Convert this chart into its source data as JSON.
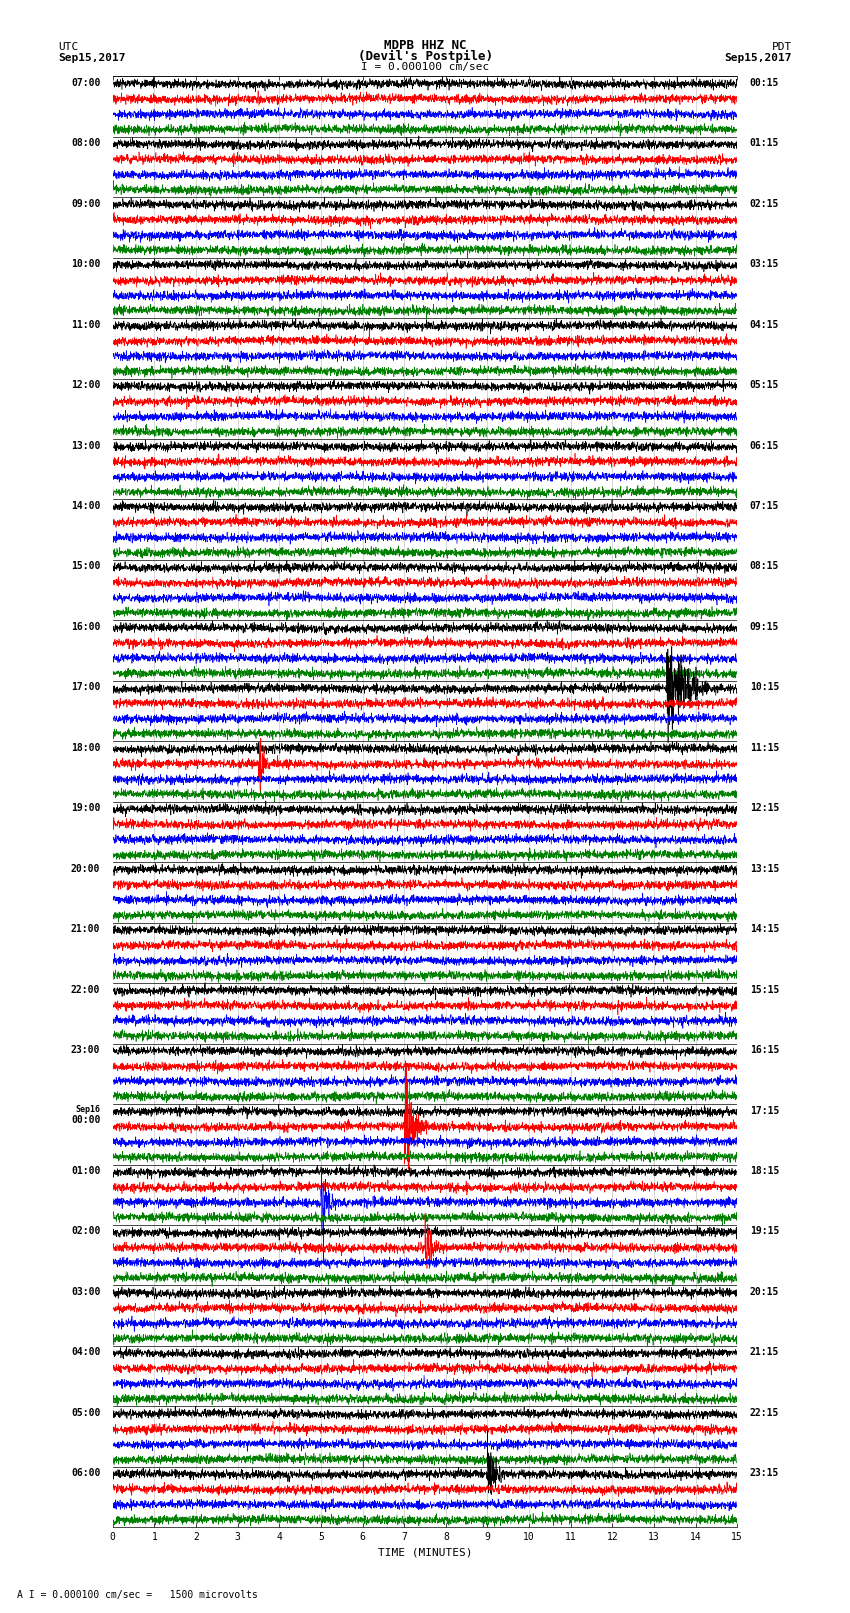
{
  "title_line1": "MDPB HHZ NC",
  "title_line2": "(Devil's Postpile)",
  "scale_label": "I = 0.000100 cm/sec",
  "left_header_line1": "UTC",
  "left_header_line2": "Sep15,2017",
  "right_header_line1": "PDT",
  "right_header_line2": "Sep15,2017",
  "bottom_label": "TIME (MINUTES)",
  "footer_note": "A I = 0.000100 cm/sec =   1500 microvolts",
  "minutes_per_row": 15,
  "colors": [
    "black",
    "red",
    "blue",
    "green"
  ],
  "left_labels": [
    "07:00",
    "08:00",
    "09:00",
    "10:00",
    "11:00",
    "12:00",
    "13:00",
    "14:00",
    "15:00",
    "16:00",
    "17:00",
    "18:00",
    "19:00",
    "20:00",
    "21:00",
    "22:00",
    "23:00",
    "Sep16",
    "00:00",
    "01:00",
    "02:00",
    "03:00",
    "04:00",
    "05:00",
    "06:00"
  ],
  "right_labels": [
    "00:15",
    "01:15",
    "02:15",
    "03:15",
    "04:15",
    "05:15",
    "06:15",
    "07:15",
    "08:15",
    "09:15",
    "10:15",
    "11:15",
    "12:15",
    "13:15",
    "14:15",
    "15:15",
    "16:15",
    "17:15",
    "18:15",
    "19:15",
    "20:15",
    "21:15",
    "22:15",
    "23:15"
  ],
  "sep16_group_idx": 17,
  "bg_color": "white",
  "noise_amp": 0.25,
  "lf_amp": 0.04,
  "mf_amp": 0.08,
  "hf_amp": 0.12,
  "n_points": 3000,
  "lw": 0.45,
  "grid_color": "#999999",
  "border_color": "black"
}
